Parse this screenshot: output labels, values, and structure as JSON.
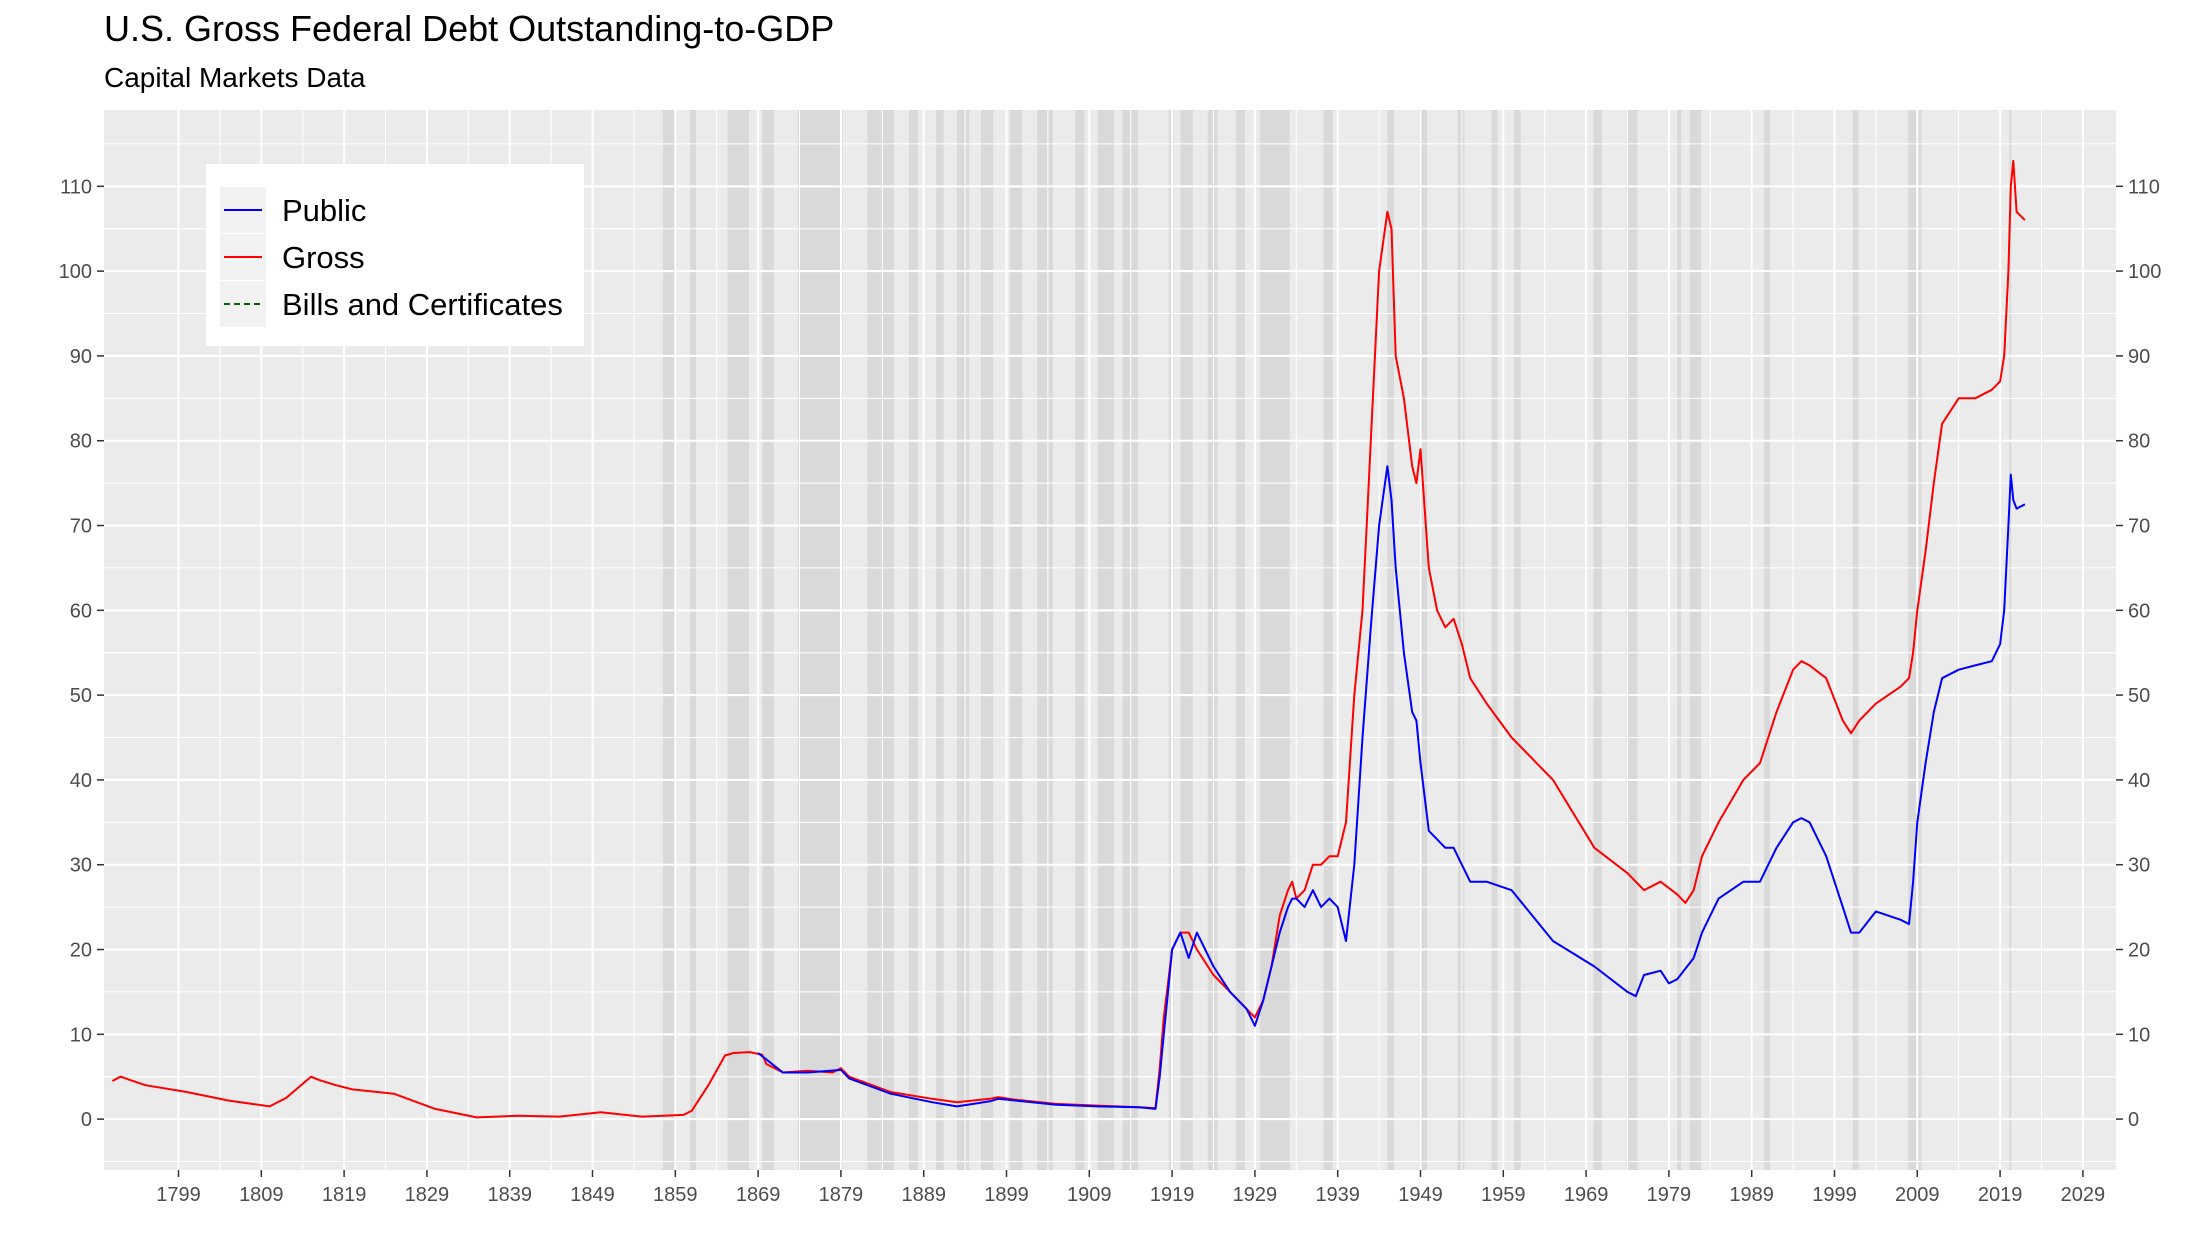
{
  "chart_data": {
    "type": "line",
    "title": "U.S. Gross Federal Debt Outstanding-to-GDP",
    "subtitle": "Capital Markets Data",
    "xlabel": "",
    "ylabel": "",
    "xlim": [
      1790,
      2033
    ],
    "ylim": [
      -6,
      119
    ],
    "x_ticks": [
      "1799",
      "1809",
      "1819",
      "1829",
      "1839",
      "1849",
      "1859",
      "1869",
      "1879",
      "1889",
      "1899",
      "1909",
      "1919",
      "1929",
      "1939",
      "1949",
      "1959",
      "1969",
      "1979",
      "1989",
      "1999",
      "2009",
      "2019",
      "2029"
    ],
    "y_ticks": [
      "0",
      "10",
      "20",
      "30",
      "40",
      "50",
      "60",
      "70",
      "80",
      "90",
      "100",
      "110"
    ],
    "grid": true,
    "secondary_y_axis": true,
    "legend": {
      "position": "top-left",
      "entries": [
        {
          "name": "Public",
          "color": "#0000ff",
          "style": "solid"
        },
        {
          "name": "Gross",
          "color": "#ff0000",
          "style": "solid"
        },
        {
          "name": "Bills and Certificates",
          "color": "#006400",
          "style": "dashed"
        }
      ]
    },
    "recession_shading": [
      [
        1857.5,
        1858.9
      ],
      [
        1860.8,
        1861.5
      ],
      [
        1865.3,
        1867.9
      ],
      [
        1869.5,
        1870.9
      ],
      [
        1873.8,
        1879.2
      ],
      [
        1882.2,
        1885.4
      ],
      [
        1887.2,
        1888.3
      ],
      [
        1890.5,
        1891.4
      ],
      [
        1893.0,
        1894.5
      ],
      [
        1895.9,
        1897.4
      ],
      [
        1899.4,
        1900.9
      ],
      [
        1902.7,
        1904.6
      ],
      [
        1907.3,
        1908.4
      ],
      [
        1910.0,
        1912.0
      ],
      [
        1913.0,
        1914.9
      ],
      [
        1918.6,
        1919.2
      ],
      [
        1920.0,
        1921.5
      ],
      [
        1923.3,
        1924.5
      ],
      [
        1926.7,
        1927.8
      ],
      [
        1929.6,
        1933.2
      ],
      [
        1937.3,
        1938.4
      ],
      [
        1945.0,
        1945.8
      ],
      [
        1948.8,
        1949.8
      ],
      [
        1953.5,
        1954.3
      ],
      [
        1957.6,
        1958.3
      ],
      [
        1960.3,
        1961.1
      ],
      [
        1969.9,
        1970.9
      ],
      [
        1973.9,
        1975.2
      ],
      [
        1980.0,
        1980.5
      ],
      [
        1981.5,
        1982.9
      ],
      [
        1990.5,
        1991.2
      ],
      [
        2001.2,
        2001.9
      ],
      [
        2007.9,
        2009.5
      ],
      [
        2020.1,
        2020.3
      ]
    ],
    "series": [
      {
        "name": "Gross",
        "color": "#ff0000",
        "x": [
          1791,
          1792,
          1795,
          1800,
          1805,
          1810,
          1812,
          1815,
          1816,
          1818,
          1820,
          1825,
          1830,
          1835,
          1840,
          1845,
          1850,
          1855,
          1860,
          1861,
          1863,
          1865,
          1866,
          1868,
          1869.5,
          1870,
          1872,
          1875,
          1878,
          1879,
          1880,
          1885,
          1890,
          1893,
          1895,
          1897,
          1898,
          1900,
          1905,
          1910,
          1915,
          1917,
          1917.5,
          1918,
          1918.5,
          1919,
          1920,
          1921,
          1922,
          1924,
          1926,
          1928,
          1929,
          1930,
          1931,
          1932,
          1933,
          1933.5,
          1934,
          1935,
          1936,
          1937,
          1938,
          1939,
          1940,
          1941,
          1942,
          1942.5,
          1943,
          1944,
          1945,
          1945.5,
          1946,
          1947,
          1948,
          1948.5,
          1949,
          1950,
          1951,
          1952,
          1953,
          1954,
          1955,
          1957,
          1960,
          1965,
          1970,
          1974,
          1975,
          1976,
          1978,
          1980,
          1981,
          1982,
          1983,
          1985,
          1988,
          1990,
          1992,
          1994,
          1995,
          1996,
          1998,
          2000,
          2001,
          2002,
          2004,
          2007,
          2008,
          2008.5,
          2009,
          2010,
          2011,
          2012,
          2014,
          2016,
          2018,
          2019,
          2019.5,
          2020,
          2020.3,
          2020.6,
          2021,
          2022
        ],
        "y": [
          4.5,
          5.0,
          4.0,
          3.2,
          2.2,
          1.5,
          2.5,
          5.0,
          4.6,
          4.0,
          3.5,
          3.0,
          1.2,
          0.2,
          0.4,
          0.3,
          0.8,
          0.3,
          0.5,
          1.0,
          4.0,
          7.5,
          7.8,
          7.9,
          7.6,
          6.5,
          5.5,
          5.7,
          5.5,
          6.0,
          5.0,
          3.2,
          2.4,
          2.0,
          2.2,
          2.4,
          2.6,
          2.3,
          1.8,
          1.6,
          1.4,
          1.3,
          6.0,
          12.0,
          16.0,
          20.0,
          22.0,
          22.0,
          20.0,
          17.0,
          15.0,
          13.0,
          12.0,
          14.0,
          18.0,
          24.0,
          27.0,
          28.0,
          26.0,
          27.0,
          30.0,
          30.0,
          31.0,
          31.0,
          35.0,
          50.0,
          60.0,
          70.0,
          80.0,
          100.0,
          107.0,
          105.0,
          90.0,
          85.0,
          77.0,
          75.0,
          79.0,
          65.0,
          60.0,
          58.0,
          59.0,
          56.0,
          52.0,
          49.0,
          45.0,
          40.0,
          32.0,
          29.0,
          28.0,
          27.0,
          28.0,
          26.5,
          25.5,
          27.0,
          31.0,
          35.0,
          40.0,
          42.0,
          48.0,
          53.0,
          54.0,
          53.5,
          52.0,
          47.0,
          45.5,
          47.0,
          49.0,
          51.0,
          52.0,
          55.0,
          60.0,
          67.0,
          75.0,
          82.0,
          85.0,
          85.0,
          86.0,
          87.0,
          90.0,
          100.0,
          110.0,
          113.0,
          107.0,
          106.0
        ]
      },
      {
        "name": "Public",
        "color": "#0000ff",
        "x": [
          1869,
          1872,
          1875,
          1879,
          1880,
          1885,
          1890,
          1893,
          1895,
          1897,
          1898,
          1900,
          1905,
          1910,
          1915,
          1917,
          1917.5,
          1918,
          1918.5,
          1919,
          1920,
          1921,
          1922,
          1924,
          1926,
          1928,
          1929,
          1930,
          1931,
          1932,
          1933,
          1933.5,
          1934,
          1935,
          1936,
          1937,
          1938,
          1939,
          1940,
          1941,
          1942,
          1943,
          1944,
          1945,
          1945.5,
          1946,
          1947,
          1948,
          1948.5,
          1949,
          1950,
          1952,
          1953,
          1955,
          1957,
          1960,
          1965,
          1970,
          1974,
          1975,
          1976,
          1978,
          1979,
          1980,
          1982,
          1983,
          1985,
          1988,
          1990,
          1992,
          1994,
          1995,
          1996,
          1998,
          2000,
          2001,
          2002,
          2004,
          2007,
          2008,
          2008.5,
          2009,
          2010,
          2011,
          2012,
          2014,
          2016,
          2018,
          2019,
          2019.5,
          2020,
          2020.3,
          2020.6,
          2021,
          2022
        ],
        "y": [
          7.8,
          5.5,
          5.5,
          5.8,
          4.8,
          3.0,
          2.0,
          1.5,
          1.8,
          2.1,
          2.4,
          2.2,
          1.7,
          1.5,
          1.4,
          1.2,
          5.0,
          10.0,
          15.0,
          20.0,
          22.0,
          19.0,
          22.0,
          18.0,
          15.0,
          13.0,
          11.0,
          14.0,
          18.0,
          22.0,
          25.0,
          26.0,
          26.0,
          25.0,
          27.0,
          25.0,
          26.0,
          25.0,
          21.0,
          30.0,
          45.0,
          58.0,
          70.0,
          77.0,
          73.0,
          65.0,
          55.0,
          48.0,
          47.0,
          42.0,
          34.0,
          32.0,
          32.0,
          28.0,
          28.0,
          27.0,
          21.0,
          18.0,
          15.0,
          14.5,
          17.0,
          17.5,
          16.0,
          16.5,
          19.0,
          22.0,
          26.0,
          28.0,
          28.0,
          32.0,
          35.0,
          35.5,
          35.0,
          31.0,
          25.0,
          22.0,
          22.0,
          24.5,
          23.5,
          23.0,
          28.0,
          35.0,
          42.0,
          48.0,
          52.0,
          53.0,
          53.5,
          54.0,
          56.0,
          60.0,
          70.0,
          76.0,
          73.0,
          72.0,
          72.5
        ]
      },
      {
        "name": "Bills and Certificates",
        "color": "#006400",
        "x": [],
        "y": []
      }
    ]
  }
}
